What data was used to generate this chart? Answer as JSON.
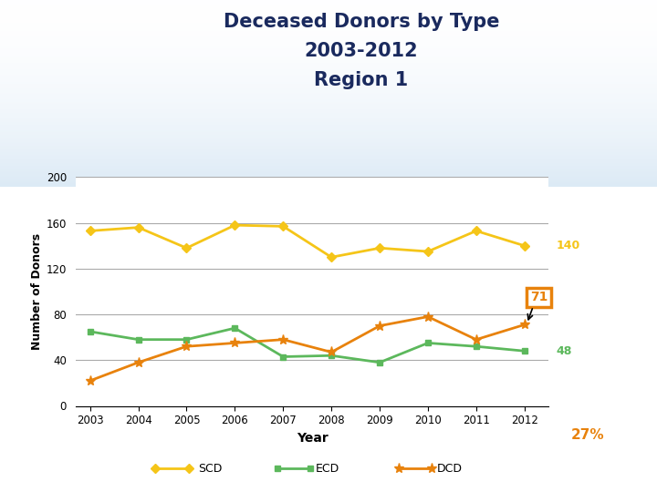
{
  "title_line1": "Deceased Donors by Type",
  "title_line2": "2003-2012",
  "title_line3": "Region 1",
  "xlabel": "Year",
  "ylabel": "Number of Donors",
  "years": [
    2003,
    2004,
    2005,
    2006,
    2007,
    2008,
    2009,
    2010,
    2011,
    2012
  ],
  "SCD": [
    153,
    156,
    138,
    158,
    157,
    130,
    138,
    135,
    153,
    140
  ],
  "ECD": [
    65,
    58,
    58,
    68,
    43,
    44,
    38,
    55,
    52,
    48
  ],
  "DCD": [
    22,
    38,
    52,
    55,
    58,
    47,
    70,
    78,
    58,
    71
  ],
  "scd_color": "#F5C518",
  "ecd_color": "#5CB85C",
  "dcd_color": "#E8820C",
  "ylim": [
    0,
    200
  ],
  "yticks": [
    0,
    40,
    80,
    120,
    160,
    200
  ],
  "label_140": "140",
  "label_48": "48",
  "label_71": "71",
  "label_27pct": "27%",
  "title_color": "#1a2a5e",
  "grid_color": "#aaaaaa",
  "unos_logo_color": "#E8820C"
}
